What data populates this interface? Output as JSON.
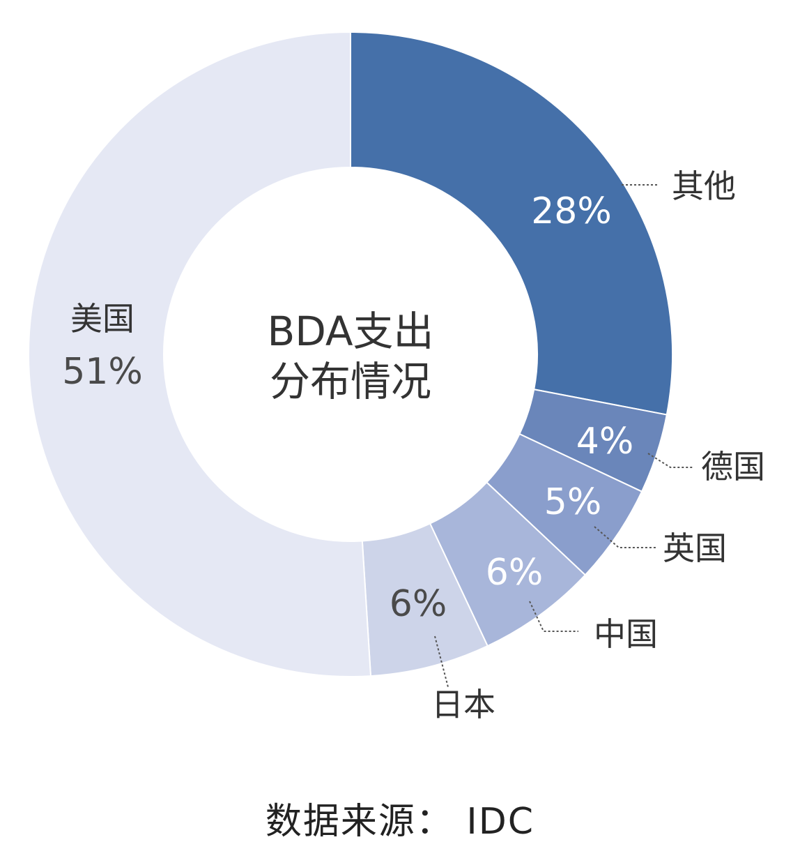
{
  "chart_data": {
    "type": "pie",
    "title": "BDA支出分布情况",
    "title_lines": [
      "BDA支出",
      "分布情况"
    ],
    "slices": [
      {
        "label": "其他",
        "pct_label": "28%",
        "value": 28,
        "color": "#4570a9",
        "text_color": "#ffffff"
      },
      {
        "label": "德国",
        "pct_label": "4%",
        "value": 4,
        "color": "#6a86ba",
        "text_color": "#ffffff"
      },
      {
        "label": "英国",
        "pct_label": "5%",
        "value": 5,
        "color": "#8a9ecc",
        "text_color": "#ffffff"
      },
      {
        "label": "中国",
        "pct_label": "6%",
        "value": 6,
        "color": "#a8b6da",
        "text_color": "#ffffff"
      },
      {
        "label": "日本",
        "pct_label": "6%",
        "value": 6,
        "color": "#cdd4e9",
        "text_color": "#4a4a4a"
      },
      {
        "label": "美国",
        "pct_label": "51%",
        "value": 51,
        "color": "#e5e8f4",
        "text_color": "#4a4a4a"
      }
    ]
  },
  "source": "数据来源： IDC"
}
